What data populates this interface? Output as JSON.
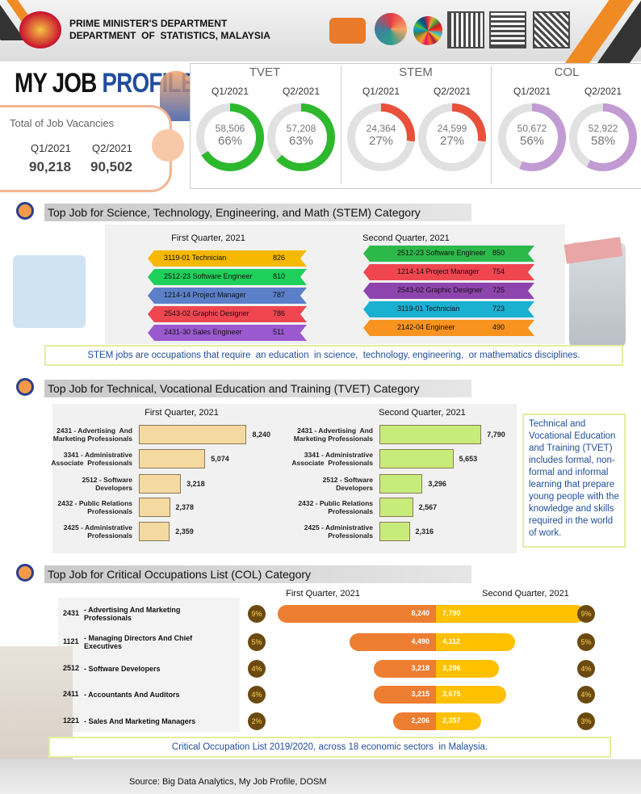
{
  "header": {
    "line1": "PRIME MINISTER'S DEPARTMENT",
    "line2": "DEPARTMENT  OF  STATISTICS, MALAYSIA"
  },
  "title": {
    "part1": "MY JOB",
    "part2": "PROFILE"
  },
  "vacancies": {
    "label": "Total of Job Vacancies",
    "items": [
      {
        "quarter": "Q1/2021",
        "value": "90,218"
      },
      {
        "quarter": "Q2/2021",
        "value": "90,502"
      }
    ]
  },
  "donuts": [
    {
      "group": "TVET",
      "color": "#2db82d",
      "items": [
        {
          "quarter": "Q1/2021",
          "count": "58,506",
          "percent": 66,
          "percent_label": "66%"
        },
        {
          "quarter": "Q2/2021",
          "count": "57,208",
          "percent": 63,
          "percent_label": "63%"
        }
      ]
    },
    {
      "group": "STEM",
      "color": "#e8503a",
      "items": [
        {
          "quarter": "Q1/2021",
          "count": "24,364",
          "percent": 27,
          "percent_label": "27%"
        },
        {
          "quarter": "Q2/2021",
          "count": "24,599",
          "percent": 27,
          "percent_label": "27%"
        }
      ]
    },
    {
      "group": "COL",
      "color": "#c39bd3",
      "items": [
        {
          "quarter": "Q1/2021",
          "count": "50,672",
          "percent": 56,
          "percent_label": "56%"
        },
        {
          "quarter": "Q2/2021",
          "count": "52,922",
          "percent": 58,
          "percent_label": "58%"
        }
      ]
    }
  ],
  "stem": {
    "title": "Top Job for Science, Technology, Engineering, and Math (STEM) Category",
    "quarters": [
      {
        "heading": "First Quarter, 2021",
        "jobs": [
          {
            "name": "3119-01 Technician",
            "value": "826",
            "color": "#f6b800"
          },
          {
            "name": "2512-23 Software Engineer",
            "value": "810",
            "color": "#1ecf5a"
          },
          {
            "name": "1214-14 Project Manager",
            "value": "787",
            "color": "#5b7fc8"
          },
          {
            "name": "2543-02 Graphic Designer",
            "value": "786",
            "color": "#ef4650"
          },
          {
            "name": "2431-30 Sales Engineer",
            "value": "511",
            "color": "#9b59d0"
          }
        ]
      },
      {
        "heading": "Second Quarter, 2021",
        "jobs": [
          {
            "name": "2512-23 Software Engineer",
            "value": "850",
            "color": "#2db84a"
          },
          {
            "name": "1214-14 Project Manager",
            "value": "754",
            "color": "#ef4650"
          },
          {
            "name": "2543-02 Graphic Designer",
            "value": "725",
            "color": "#8e44ad"
          },
          {
            "name": "3119-01 Technician",
            "value": "723",
            "color": "#1ab0d0"
          },
          {
            "name": "2142-04 Engineer",
            "value": "490",
            "color": "#f7931e"
          }
        ]
      }
    ],
    "note": "STEM jobs are occupations that require  an education  in science,  technology, engineering,  or mathematics disciplines."
  },
  "tvet": {
    "title": "Top Job for Technical, Vocational Education and Training (TVET) Category",
    "quarters": [
      {
        "heading": "First Quarter, 2021",
        "color": "#f4d9a0",
        "jobs": [
          {
            "name": "2431 - Advertising  And Marketing Professionals",
            "value": 8240,
            "value_label": "8,240"
          },
          {
            "name": "3341 - Administrative Associate  Professionals",
            "value": 5074,
            "value_label": "5,074"
          },
          {
            "name": "2512 - Software  Developers",
            "value": 3218,
            "value_label": "3,218"
          },
          {
            "name": "2432 - Public Relations Professionals",
            "value": 2378,
            "value_label": "2,378"
          },
          {
            "name": "2425 - Administrative Professionals",
            "value": 2359,
            "value_label": "2,359"
          }
        ]
      },
      {
        "heading": "Second Quarter, 2021",
        "color": "#c8ec7a",
        "jobs": [
          {
            "name": "2431 - Advertising  And Marketing Professionals",
            "value": 7790,
            "value_label": "7,790"
          },
          {
            "name": "3341 - Administrative Associate  Professionals",
            "value": 5653,
            "value_label": "5,653"
          },
          {
            "name": "2512 - Software  Developers",
            "value": 3296,
            "value_label": "3,296"
          },
          {
            "name": "2432 - Public Relations Professionals",
            "value": 2567,
            "value_label": "2,567"
          },
          {
            "name": "2425 - Administrative Professionals",
            "value": 2316,
            "value_label": "2,316"
          }
        ]
      }
    ],
    "note": "Technical and Vocational Education and Training (TVET) includes formal, non-formal and informal learning that prepare young people with the knowledge and skills required in the world of work."
  },
  "col": {
    "title": "Top Job for Critical Occupations List (COL) Category",
    "headings": [
      "First Quarter, 2021",
      "Second Quarter, 2021"
    ],
    "jobs": [
      {
        "code": "2431",
        "name": "- Advertising And Marketing Professionals",
        "q1": 8240,
        "q1_label": "8,240",
        "q2": 7790,
        "q2_label": "7,790",
        "q1_share": 9,
        "q1_share_label": "9%",
        "q2_share": 9,
        "q2_share_label": "9%"
      },
      {
        "code": "1121",
        "name": "- Managing Directors And Chief Executives",
        "q1": 4490,
        "q1_label": "4,490",
        "q2": 4112,
        "q2_label": "4,112",
        "q1_share": 5,
        "q1_share_label": "5%",
        "q2_share": 5,
        "q2_share_label": "5%"
      },
      {
        "code": "2512",
        "name": "- Software Developers",
        "q1": 3218,
        "q1_label": "3,218",
        "q2": 3296,
        "q2_label": "3,296",
        "q1_share": 4,
        "q1_share_label": "4%",
        "q2_share": 4,
        "q2_share_label": "4%"
      },
      {
        "code": "2411",
        "name": "- Accountants And Auditors",
        "q1": 3215,
        "q1_label": "3,215",
        "q2": 3675,
        "q2_label": "3,675",
        "q1_share": 4,
        "q1_share_label": "4%",
        "q2_share": 4,
        "q2_share_label": "4%"
      },
      {
        "code": "1221",
        "name": "- Sales And Marketing Managers",
        "q1": 2206,
        "q1_label": "2,206",
        "q2": 2357,
        "q2_label": "2,357",
        "q1_share": 2,
        "q1_share_label": "2%",
        "q2_share": 3,
        "q2_share_label": "3%"
      }
    ],
    "note": "Critical Occupation List 2019/2020, across 18 economic sectors  in Malaysia."
  },
  "source": "Source: Big Data Analytics, My Job Profile, DOSM"
}
